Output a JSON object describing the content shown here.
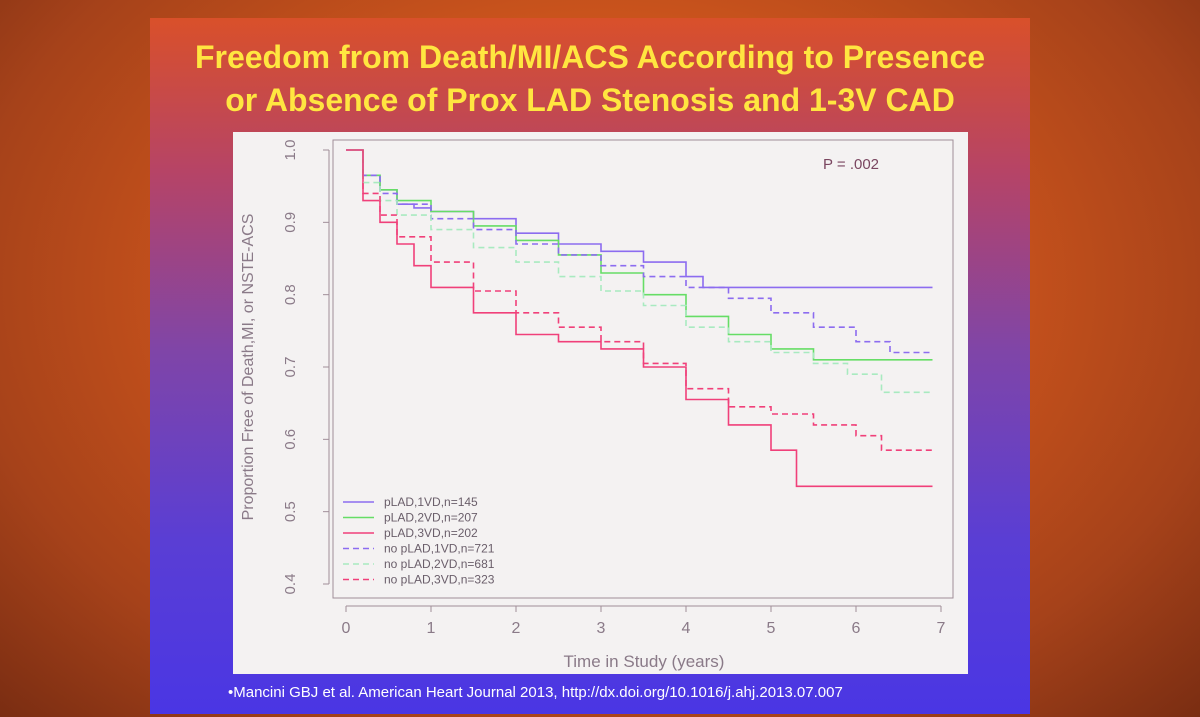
{
  "slide": {
    "title_line1": "Freedom from Death/MI/ACS According to Presence",
    "title_line2": "or Absence of Prox LAD Stenosis and 1-3V CAD",
    "citation": "•Mancini GBJ et al. American Heart Journal 2013, http://dx.doi.org/10.1016/j.ahj.2013.07.007"
  },
  "colors": {
    "title": "#ffe640",
    "pLAD_1VD": "#8c6cf0",
    "pLAD_2VD": "#66dd66",
    "pLAD_3VD": "#f0407a",
    "no_pLAD_1VD": "#8c6cf0",
    "no_pLAD_2VD": "#a8eac0",
    "no_pLAD_3VD": "#f0407a"
  },
  "chart_data": {
    "type": "line",
    "title": "",
    "xlabel": "Time in Study (years)",
    "ylabel": "Proportion Free of Death,MI, or NSTE-ACS",
    "xlim": [
      0,
      7
    ],
    "ylim": [
      0.4,
      1.0
    ],
    "xticks": [
      "0",
      "1",
      "2",
      "3",
      "4",
      "5",
      "6",
      "7"
    ],
    "yticks": [
      "0.4",
      "0.5",
      "0.6",
      "0.7",
      "0.8",
      "0.9",
      "1.0"
    ],
    "annotation": "P = .002",
    "step": true,
    "legend_position": "bottom-left",
    "series": [
      {
        "name": "pLAD,1VD,n=145",
        "dash": false,
        "color_key": "pLAD_1VD",
        "x": [
          0,
          0.2,
          0.4,
          0.6,
          0.8,
          1.0,
          1.5,
          2.0,
          2.5,
          3.0,
          3.5,
          4.0,
          4.2,
          4.6,
          5.0,
          6.0,
          6.9
        ],
        "y": [
          1.0,
          0.965,
          0.945,
          0.925,
          0.92,
          0.915,
          0.905,
          0.885,
          0.87,
          0.86,
          0.845,
          0.825,
          0.81,
          0.81,
          0.81,
          0.81,
          0.81
        ]
      },
      {
        "name": "pLAD,2VD,n=207",
        "dash": false,
        "color_key": "pLAD_2VD",
        "x": [
          0,
          0.2,
          0.4,
          0.6,
          1.0,
          1.5,
          2.0,
          2.5,
          3.0,
          3.5,
          4.0,
          4.5,
          5.0,
          5.5,
          6.0,
          6.9
        ],
        "y": [
          1.0,
          0.965,
          0.945,
          0.93,
          0.915,
          0.895,
          0.875,
          0.855,
          0.83,
          0.8,
          0.77,
          0.745,
          0.725,
          0.71,
          0.71,
          0.71
        ]
      },
      {
        "name": "pLAD,3VD,n=202",
        "dash": false,
        "color_key": "pLAD_3VD",
        "x": [
          0,
          0.2,
          0.4,
          0.6,
          0.8,
          1.0,
          1.5,
          2.0,
          2.5,
          3.0,
          3.5,
          4.0,
          4.5,
          5.0,
          5.3,
          5.6,
          6.9
        ],
        "y": [
          1.0,
          0.93,
          0.9,
          0.87,
          0.84,
          0.81,
          0.775,
          0.745,
          0.735,
          0.725,
          0.7,
          0.655,
          0.62,
          0.585,
          0.535,
          0.535,
          0.535
        ]
      },
      {
        "name": "no pLAD,1VD,n=721",
        "dash": true,
        "color_key": "no_pLAD_1VD",
        "x": [
          0,
          0.2,
          0.4,
          0.6,
          1.0,
          1.5,
          2.0,
          2.5,
          3.0,
          3.5,
          4.0,
          4.5,
          5.0,
          5.5,
          6.0,
          6.4,
          6.9
        ],
        "y": [
          1.0,
          0.965,
          0.94,
          0.925,
          0.905,
          0.89,
          0.87,
          0.855,
          0.84,
          0.825,
          0.81,
          0.795,
          0.775,
          0.755,
          0.735,
          0.72,
          0.72
        ]
      },
      {
        "name": "no pLAD,2VD,n=681",
        "dash": true,
        "color_key": "no_pLAD_2VD",
        "x": [
          0,
          0.2,
          0.4,
          0.6,
          1.0,
          1.5,
          2.0,
          2.5,
          3.0,
          3.5,
          4.0,
          4.5,
          5.0,
          5.5,
          5.9,
          6.3,
          6.9
        ],
        "y": [
          1.0,
          0.955,
          0.93,
          0.91,
          0.89,
          0.865,
          0.845,
          0.825,
          0.805,
          0.785,
          0.755,
          0.735,
          0.72,
          0.705,
          0.69,
          0.665,
          0.665
        ]
      },
      {
        "name": "no pLAD,3VD,n=323",
        "dash": true,
        "color_key": "no_pLAD_3VD",
        "x": [
          0,
          0.2,
          0.4,
          0.6,
          1.0,
          1.5,
          2.0,
          2.5,
          3.0,
          3.5,
          4.0,
          4.5,
          5.0,
          5.5,
          6.0,
          6.3,
          6.9
        ],
        "y": [
          1.0,
          0.94,
          0.91,
          0.88,
          0.845,
          0.805,
          0.775,
          0.755,
          0.735,
          0.705,
          0.67,
          0.645,
          0.635,
          0.62,
          0.605,
          0.585,
          0.585
        ]
      }
    ]
  }
}
